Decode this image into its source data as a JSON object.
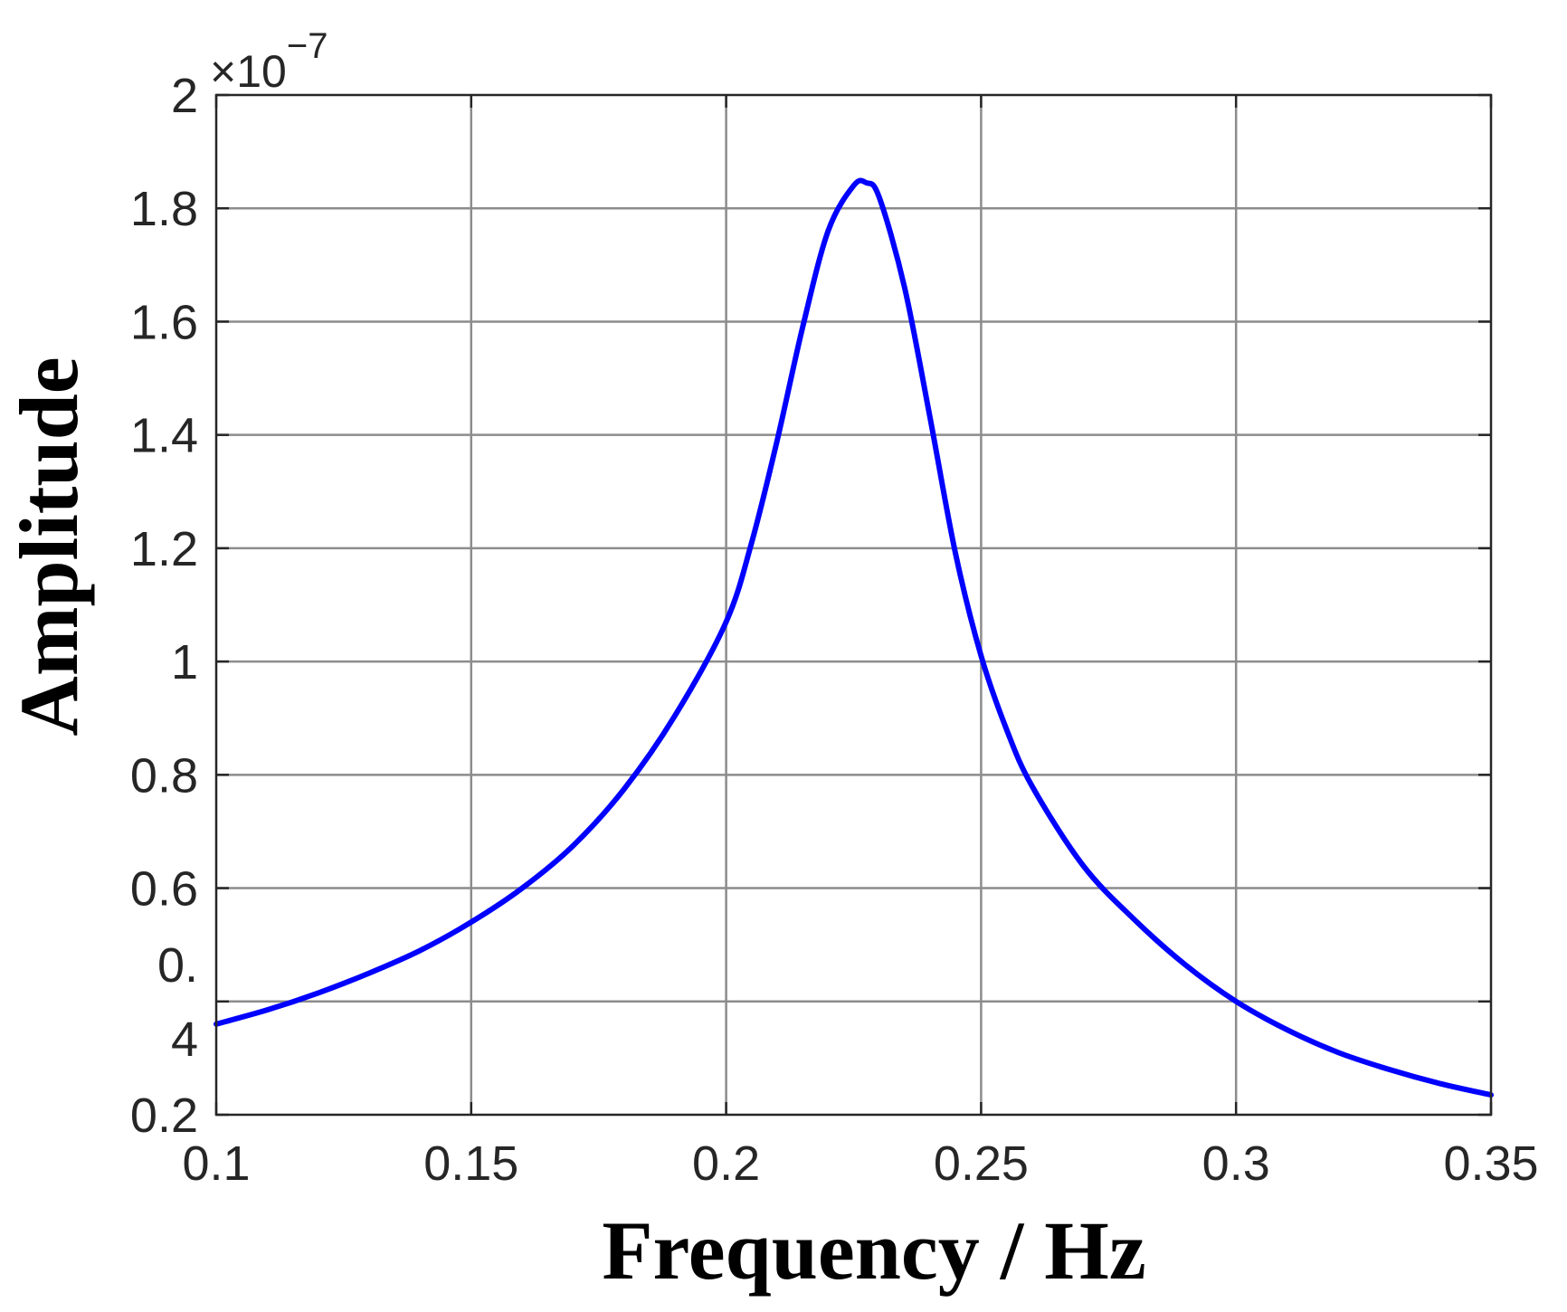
{
  "chart_data": {
    "type": "line",
    "title": "",
    "xlabel": "Frequency / Hz",
    "ylabel": "Amplitude",
    "xlim": [
      0.1,
      0.35
    ],
    "ylim": [
      0.2,
      2.0
    ],
    "grid": true,
    "y_multiplier": {
      "times": "×",
      "base": "10",
      "exponent": "−7"
    },
    "x_ticks": [
      {
        "value": 0.1,
        "label": "0.1"
      },
      {
        "value": 0.15,
        "label": "0.15"
      },
      {
        "value": 0.2,
        "label": "0.2"
      },
      {
        "value": 0.25,
        "label": "0.25"
      },
      {
        "value": 0.3,
        "label": "0.3"
      },
      {
        "value": 0.35,
        "label": "0.35"
      }
    ],
    "y_ticks": [
      {
        "value": 0.2,
        "label": "0.2"
      },
      {
        "value": 0.4,
        "label": "0.\n4"
      },
      {
        "value": 0.6,
        "label": "0.6"
      },
      {
        "value": 0.8,
        "label": "0.8"
      },
      {
        "value": 1.0,
        "label": "1"
      },
      {
        "value": 1.2,
        "label": "1.2"
      },
      {
        "value": 1.4,
        "label": "1.4"
      },
      {
        "value": 1.6,
        "label": "1.6"
      },
      {
        "value": 1.8,
        "label": "1.8"
      },
      {
        "value": 2.0,
        "label": "2"
      }
    ],
    "series": [
      {
        "color": "#0000ff",
        "x": [
          0.1,
          0.11,
          0.12,
          0.13,
          0.14,
          0.15,
          0.16,
          0.17,
          0.18,
          0.19,
          0.2,
          0.205,
          0.21,
          0.215,
          0.22,
          0.225,
          0.2275,
          0.23,
          0.235,
          0.24,
          0.245,
          0.25,
          0.255,
          0.26,
          0.27,
          0.28,
          0.29,
          0.3,
          0.31,
          0.32,
          0.33,
          0.34,
          0.35
        ],
        "y": [
          0.36,
          0.385,
          0.415,
          0.45,
          0.49,
          0.54,
          0.6,
          0.675,
          0.775,
          0.905,
          1.07,
          1.21,
          1.39,
          1.59,
          1.76,
          1.84,
          1.845,
          1.82,
          1.66,
          1.43,
          1.19,
          1.01,
          0.88,
          0.78,
          0.64,
          0.545,
          0.465,
          0.4,
          0.35,
          0.31,
          0.28,
          0.255,
          0.235
        ]
      }
    ]
  }
}
